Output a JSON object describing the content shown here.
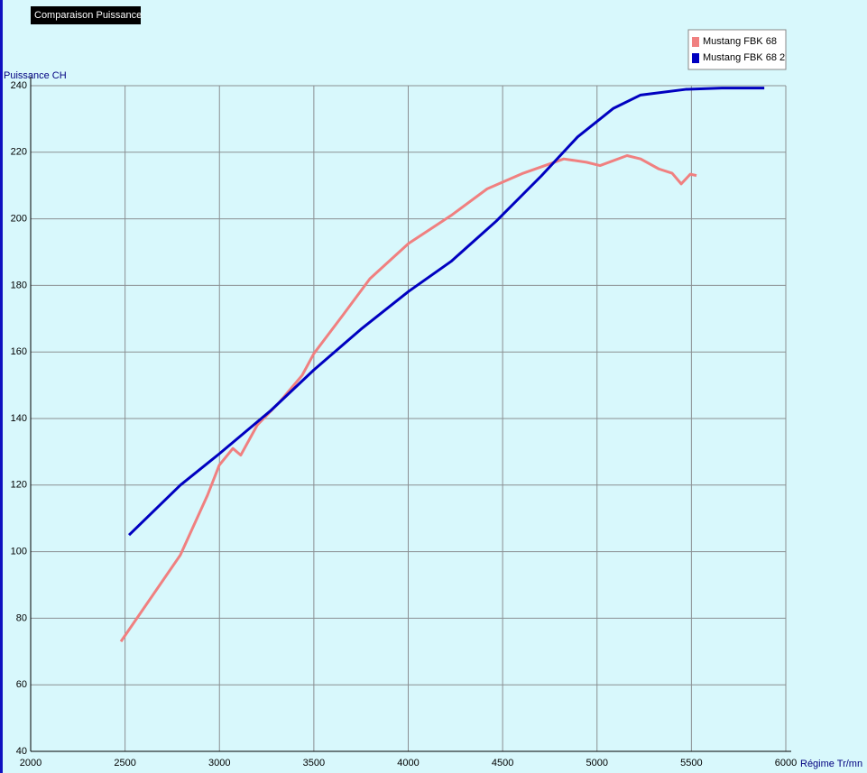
{
  "chart_data": {
    "type": "line",
    "title": "Comparaison Puissance",
    "y_label": "Puissance CH",
    "x_label": "Régime Tr/mn",
    "xlim": [
      2000,
      6000
    ],
    "xticks": [
      2000,
      2500,
      3000,
      3500,
      4000,
      4500,
      5000,
      5500,
      6000
    ],
    "ylim": [
      40,
      240
    ],
    "yticks": [
      40,
      60,
      80,
      100,
      120,
      140,
      160,
      180,
      200,
      220,
      240
    ],
    "grid": true,
    "legend": "top-right",
    "series": [
      {
        "name": "Mustang FBK 68",
        "color": "#f08080",
        "x": [
          2478,
          2793,
          2937,
          2999,
          3071,
          3113,
          3200,
          3319,
          3438,
          3500,
          3653,
          3797,
          4002,
          4227,
          4418,
          4609,
          4824,
          4944,
          5016,
          5159,
          5231,
          5327,
          5398,
          5446,
          5494,
          5527
        ],
        "values": [
          73,
          99,
          117,
          126,
          131,
          129,
          138,
          145,
          153,
          159.5,
          171,
          182,
          192.6,
          201,
          209,
          213.7,
          218,
          217,
          216,
          219,
          218,
          215,
          213.7,
          210.5,
          213.4,
          213
        ]
      },
      {
        "name": "Mustang FBK 68 2",
        "color": "#0000c0",
        "x": [
          2521,
          2793,
          2999,
          3272,
          3500,
          3749,
          4002,
          4227,
          4466,
          4705,
          4897,
          5087,
          5231,
          5470,
          5661,
          5886
        ],
        "values": [
          105,
          120,
          129.4,
          142.4,
          154.6,
          166.8,
          178.2,
          187.2,
          199.3,
          212.9,
          224.6,
          233.2,
          237.2,
          238.9,
          239.3,
          239.3
        ]
      }
    ]
  }
}
